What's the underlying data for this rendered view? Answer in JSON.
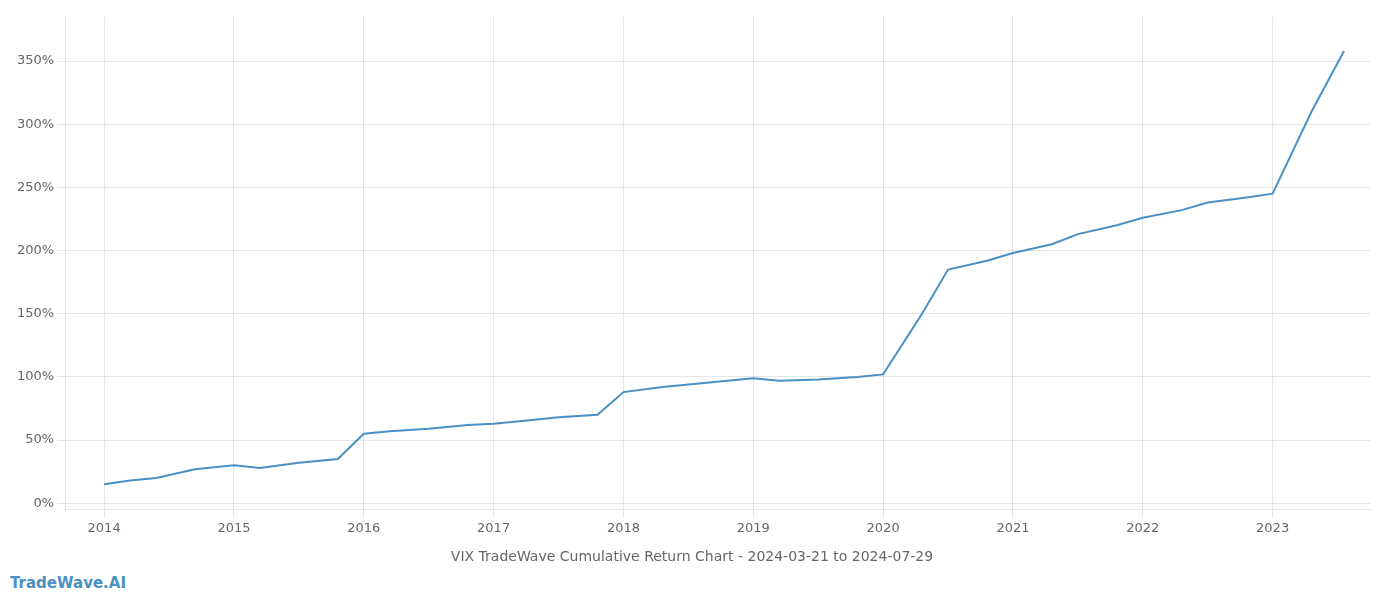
{
  "chart_data": {
    "type": "line",
    "title": "VIX TradeWave Cumulative Return Chart - 2024-03-21 to 2024-07-29",
    "annotations": [
      {
        "text": "TradeWave.AI",
        "color": "#4a90c4"
      }
    ],
    "x": [
      2014.0,
      2014.2,
      2014.4,
      2014.7,
      2015.0,
      2015.2,
      2015.5,
      2015.8,
      2016.0,
      2016.2,
      2016.5,
      2016.8,
      2017.0,
      2017.2,
      2017.5,
      2017.8,
      2018.0,
      2018.3,
      2018.6,
      2019.0,
      2019.2,
      2019.5,
      2019.8,
      2020.0,
      2020.3,
      2020.5,
      2020.8,
      2021.0,
      2021.3,
      2021.5,
      2021.8,
      2022.0,
      2022.3,
      2022.5,
      2022.8,
      2023.0,
      2023.3,
      2023.55
    ],
    "values": [
      15,
      18,
      20,
      27,
      30,
      28,
      32,
      35,
      55,
      57,
      59,
      62,
      63,
      65,
      68,
      70,
      88,
      92,
      95,
      99,
      97,
      98,
      100,
      102,
      150,
      185,
      192,
      198,
      205,
      213,
      220,
      226,
      232,
      238,
      242,
      245,
      310,
      358
    ],
    "color": "#4a90c4",
    "xlim": [
      2013.7,
      2023.75
    ],
    "xticks": [
      2014,
      2015,
      2016,
      2017,
      2018,
      2019,
      2020,
      2021,
      2022,
      2023
    ],
    "ylim": [
      -5,
      385
    ],
    "yticks": [
      {
        "value": 0,
        "label": "0%"
      },
      {
        "value": 50,
        "label": "50%"
      },
      {
        "value": 100,
        "label": "100%"
      },
      {
        "value": 150,
        "label": "150%"
      },
      {
        "value": 200,
        "label": "200%"
      },
      {
        "value": 250,
        "label": "250%"
      },
      {
        "value": 300,
        "label": "300%"
      },
      {
        "value": 350,
        "label": "350%"
      }
    ],
    "grid": true
  }
}
